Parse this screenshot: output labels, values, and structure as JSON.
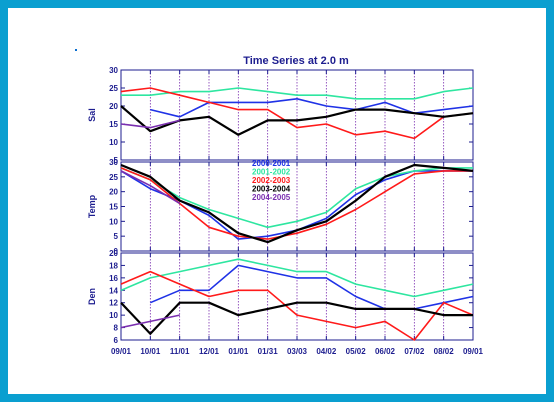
{
  "colors": {
    "border": "#0a9fd0",
    "axis": "#1d1d8f",
    "grid": "#7a2fb0",
    "label": "#1d1d8f"
  },
  "chart_data": {
    "type": "line",
    "title": "Time Series at 2.0 m",
    "x_ticks": [
      "09/01",
      "10/01",
      "11/01",
      "12/01",
      "01/01",
      "01/31",
      "03/03",
      "04/02",
      "05/02",
      "06/02",
      "07/02",
      "08/02",
      "09/01"
    ],
    "legend_placement": "inside middle panel, top-center",
    "series_meta": [
      {
        "name": "2000-2001",
        "color": "#1f32e6"
      },
      {
        "name": "2001-2002",
        "color": "#2ee6a0"
      },
      {
        "name": "2002-2003",
        "color": "#ff1a1a"
      },
      {
        "name": "2003-2004",
        "color": "#000000"
      },
      {
        "name": "2004-2005",
        "color": "#7a2fb0"
      }
    ],
    "panels": [
      {
        "ylabel": "Sal",
        "ylim": [
          5,
          30
        ],
        "yticks": [
          5,
          10,
          15,
          20,
          25,
          30
        ],
        "series": [
          {
            "name": "2000-2001",
            "x": [
              1,
              2,
              3,
              4,
              5,
              6,
              7,
              8,
              9,
              10,
              11,
              12
            ],
            "y": [
              19,
              17,
              21,
              21,
              21,
              22,
              20,
              19,
              21,
              18,
              19,
              20
            ]
          },
          {
            "name": "2001-2002",
            "x": [
              0,
              1,
              2,
              3,
              4,
              5,
              6,
              7,
              8,
              9,
              10,
              11,
              12
            ],
            "y": [
              23,
              23,
              24,
              24,
              25,
              24,
              23,
              23,
              22,
              22,
              22,
              24,
              25
            ]
          },
          {
            "name": "2002-2003",
            "x": [
              0,
              1,
              2,
              3,
              4,
              5,
              6,
              7,
              8,
              9,
              10,
              11,
              12
            ],
            "y": [
              24,
              25,
              23,
              21,
              19,
              19,
              14,
              15,
              12,
              13,
              11,
              17,
              18
            ]
          },
          {
            "name": "2003-2004",
            "x": [
              0,
              1,
              2,
              3,
              4,
              5,
              6,
              7,
              8,
              9,
              10,
              11,
              12
            ],
            "y": [
              20,
              13,
              16,
              17,
              12,
              16,
              16,
              17,
              19,
              19,
              18,
              17,
              18
            ]
          },
          {
            "name": "2004-2005",
            "x": [
              0,
              1,
              2
            ],
            "y": [
              15,
              14,
              16
            ]
          }
        ]
      },
      {
        "ylabel": "Temp",
        "ylim": [
          0,
          30
        ],
        "yticks": [
          0,
          5,
          10,
          15,
          20,
          25,
          30
        ],
        "series": [
          {
            "name": "2000-2001",
            "x": [
              0,
              1,
              2,
              3,
              4,
              5,
              6,
              7,
              8,
              9,
              10,
              11,
              12
            ],
            "y": [
              27,
              21,
              17,
              12,
              4,
              5,
              7,
              11,
              19,
              24,
              27,
              27,
              27
            ]
          },
          {
            "name": "2001-2002",
            "x": [
              0,
              1,
              2,
              3,
              4,
              5,
              6,
              7,
              8,
              9,
              10,
              11,
              12
            ],
            "y": [
              28,
              24,
              18,
              14,
              11,
              8,
              10,
              13,
              21,
              25,
              27,
              28,
              28
            ]
          },
          {
            "name": "2002-2003",
            "x": [
              0,
              1,
              2,
              3,
              4,
              5,
              6,
              7,
              8,
              9,
              10,
              11,
              12
            ],
            "y": [
              28,
              24,
              16,
              8,
              5,
              4,
              6,
              9,
              14,
              20,
              26,
              27,
              27
            ]
          },
          {
            "name": "2003-2004",
            "x": [
              0,
              1,
              2,
              3,
              4,
              5,
              6,
              7,
              8,
              9,
              10,
              11,
              12
            ],
            "y": [
              29,
              25,
              17,
              13,
              6,
              3,
              7,
              10,
              17,
              25,
              29,
              28,
              27
            ]
          },
          {
            "name": "2004-2005",
            "x": [
              0,
              1,
              2
            ],
            "y": [
              27,
              22,
              16
            ]
          }
        ]
      },
      {
        "ylabel": "Den",
        "ylim": [
          6,
          20
        ],
        "yticks": [
          6,
          8,
          10,
          12,
          14,
          16,
          18,
          20
        ],
        "series": [
          {
            "name": "2000-2001",
            "x": [
              1,
              2,
              3,
              4,
              5,
              6,
              7,
              8,
              9,
              10,
              11,
              12
            ],
            "y": [
              12,
              14,
              14,
              18,
              17,
              16,
              16,
              13,
              11,
              11,
              12,
              13
            ]
          },
          {
            "name": "2001-2002",
            "x": [
              0,
              1,
              2,
              3,
              4,
              5,
              6,
              7,
              8,
              9,
              10,
              11,
              12
            ],
            "y": [
              14,
              16,
              17,
              18,
              19,
              18,
              17,
              17,
              15,
              14,
              13,
              14,
              15
            ]
          },
          {
            "name": "2002-2003",
            "x": [
              0,
              1,
              2,
              3,
              4,
              5,
              6,
              7,
              8,
              9,
              10,
              11,
              12
            ],
            "y": [
              15,
              17,
              15,
              13,
              14,
              14,
              10,
              9,
              8,
              9,
              6,
              12,
              10
            ]
          },
          {
            "name": "2003-2004",
            "x": [
              0,
              1,
              2,
              3,
              4,
              5,
              6,
              7,
              8,
              9,
              10,
              11,
              12
            ],
            "y": [
              12,
              7,
              12,
              12,
              10,
              11,
              12,
              12,
              11,
              11,
              11,
              10,
              10
            ]
          },
          {
            "name": "2004-2005",
            "x": [
              0,
              1,
              2
            ],
            "y": [
              8,
              9,
              10
            ]
          }
        ]
      }
    ]
  }
}
